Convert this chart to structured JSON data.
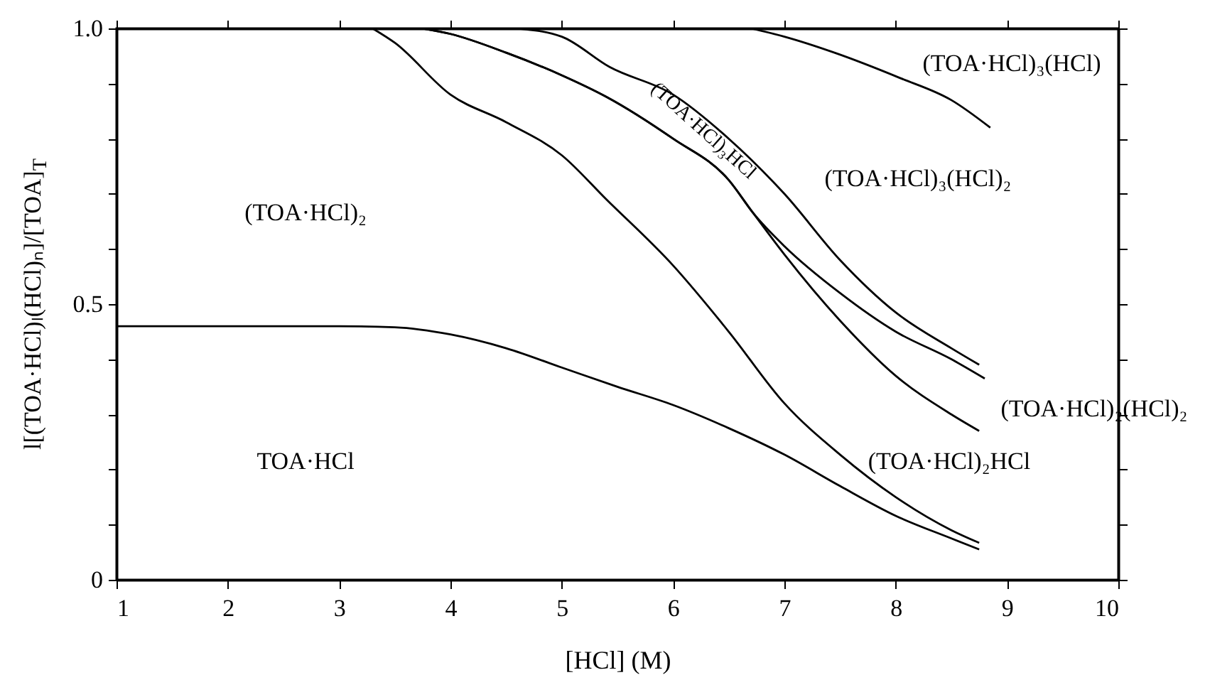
{
  "chart_data": {
    "type": "line",
    "xlabel": "[HCl] (M)",
    "ylabel": "l[(TOA·HCl)ₗ(HCl)ₙ]/[TOA]$_{T}$",
    "xlim": [
      1,
      10
    ],
    "xticks": [
      1,
      2,
      3,
      4,
      5,
      6,
      7,
      8,
      9,
      10
    ],
    "ylim": [
      0,
      1
    ],
    "yticks": [
      0,
      {
        "value": 0.1,
        "label": null
      },
      {
        "value": 0.2,
        "label": null
      },
      {
        "value": 0.3,
        "label": null
      },
      {
        "value": 0.4,
        "label": null
      },
      0.5,
      {
        "value": 0.6,
        "label": null
      },
      {
        "value": 0.7,
        "label": null
      },
      {
        "value": 0.8,
        "label": null
      },
      {
        "value": 0.9,
        "label": null
      },
      {
        "value": 1,
        "label": "1.0"
      }
    ],
    "grid": false,
    "series": [
      {
        "color": "#000000",
        "x": [
          1,
          2,
          3,
          3.5,
          4,
          4.5,
          5,
          5.5,
          6,
          6.5,
          7,
          7.5,
          8,
          8.5,
          8.75
        ],
        "values": [
          0.46,
          0.46,
          0.46,
          0.458,
          0.445,
          0.42,
          0.385,
          0.35,
          0.317,
          0.275,
          0.227,
          0.17,
          0.116,
          0.075,
          0.055
        ]
      },
      {
        "color": "#000000",
        "x": [
          3.3,
          3.5,
          4,
          4.5,
          5,
          5.4,
          6,
          6.5,
          7,
          7.5,
          8,
          8.5,
          8.75
        ],
        "values": [
          1,
          0.974,
          0.88,
          0.83,
          0.77,
          0.69,
          0.57,
          0.45,
          0.32,
          0.227,
          0.15,
          0.09,
          0.067
        ]
      },
      {
        "color": "#000000",
        "x": [
          3.75,
          4,
          4.5,
          5,
          5.4,
          6,
          6.5,
          6.72,
          7,
          7.5,
          8,
          8.5,
          8.8
        ],
        "values": [
          1,
          0.99,
          0.956,
          0.915,
          0.876,
          0.8,
          0.725,
          0.665,
          0.605,
          0.52,
          0.45,
          0.4,
          0.365
        ]
      },
      {
        "color": "#000000",
        "x": [
          3.75,
          4,
          4.5,
          5,
          5.4,
          6,
          6.5,
          6.72,
          7,
          7.5,
          8,
          8.5,
          8.75
        ],
        "values": [
          1,
          0.99,
          0.956,
          0.915,
          0.876,
          0.8,
          0.725,
          0.665,
          0.59,
          0.47,
          0.37,
          0.3,
          0.27
        ]
      },
      {
        "color": "#000000",
        "x": [
          4.6,
          5,
          5.43,
          6,
          6.5,
          7,
          7.5,
          8,
          8.5,
          8.75
        ],
        "values": [
          1,
          0.985,
          0.93,
          0.88,
          0.8,
          0.7,
          0.58,
          0.485,
          0.42,
          0.39
        ]
      },
      {
        "color": "#000000",
        "x": [
          6.7,
          7,
          7.45,
          8.04,
          8.5,
          8.85
        ],
        "values": [
          1,
          0.985,
          0.956,
          0.91,
          0.87,
          0.82
        ]
      }
    ],
    "annotations": [
      "(TOA·HCl)₂",
      "TOA·HCl",
      "(TOA·HCl)₃HCl",
      "(TOA·HCl)₃(HCl)",
      "(TOA·HCl)₃(HCl)₂",
      "(TOA·HCl)₂(HCl)₂",
      "(TOA·HCl)₂HCl"
    ]
  }
}
